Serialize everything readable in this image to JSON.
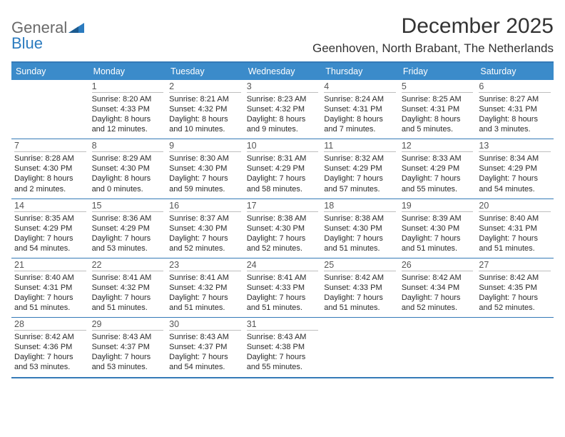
{
  "logo": {
    "word1": "General",
    "word2": "Blue"
  },
  "title": "December 2025",
  "location": "Geenhoven, North Brabant, The Netherlands",
  "colors": {
    "header_bg": "#3b8bca",
    "border": "#357ab7",
    "text": "#2a2a2a",
    "daynum": "#555555"
  },
  "dayNames": [
    "Sunday",
    "Monday",
    "Tuesday",
    "Wednesday",
    "Thursday",
    "Friday",
    "Saturday"
  ],
  "weeks": [
    [
      {
        "n": "",
        "sr": "",
        "ss": "",
        "dl": ""
      },
      {
        "n": "1",
        "sr": "8:20 AM",
        "ss": "4:33 PM",
        "dl": "8 hours and 12 minutes."
      },
      {
        "n": "2",
        "sr": "8:21 AM",
        "ss": "4:32 PM",
        "dl": "8 hours and 10 minutes."
      },
      {
        "n": "3",
        "sr": "8:23 AM",
        "ss": "4:32 PM",
        "dl": "8 hours and 9 minutes."
      },
      {
        "n": "4",
        "sr": "8:24 AM",
        "ss": "4:31 PM",
        "dl": "8 hours and 7 minutes."
      },
      {
        "n": "5",
        "sr": "8:25 AM",
        "ss": "4:31 PM",
        "dl": "8 hours and 5 minutes."
      },
      {
        "n": "6",
        "sr": "8:27 AM",
        "ss": "4:31 PM",
        "dl": "8 hours and 3 minutes."
      }
    ],
    [
      {
        "n": "7",
        "sr": "8:28 AM",
        "ss": "4:30 PM",
        "dl": "8 hours and 2 minutes."
      },
      {
        "n": "8",
        "sr": "8:29 AM",
        "ss": "4:30 PM",
        "dl": "8 hours and 0 minutes."
      },
      {
        "n": "9",
        "sr": "8:30 AM",
        "ss": "4:30 PM",
        "dl": "7 hours and 59 minutes."
      },
      {
        "n": "10",
        "sr": "8:31 AM",
        "ss": "4:29 PM",
        "dl": "7 hours and 58 minutes."
      },
      {
        "n": "11",
        "sr": "8:32 AM",
        "ss": "4:29 PM",
        "dl": "7 hours and 57 minutes."
      },
      {
        "n": "12",
        "sr": "8:33 AM",
        "ss": "4:29 PM",
        "dl": "7 hours and 55 minutes."
      },
      {
        "n": "13",
        "sr": "8:34 AM",
        "ss": "4:29 PM",
        "dl": "7 hours and 54 minutes."
      }
    ],
    [
      {
        "n": "14",
        "sr": "8:35 AM",
        "ss": "4:29 PM",
        "dl": "7 hours and 54 minutes."
      },
      {
        "n": "15",
        "sr": "8:36 AM",
        "ss": "4:29 PM",
        "dl": "7 hours and 53 minutes."
      },
      {
        "n": "16",
        "sr": "8:37 AM",
        "ss": "4:30 PM",
        "dl": "7 hours and 52 minutes."
      },
      {
        "n": "17",
        "sr": "8:38 AM",
        "ss": "4:30 PM",
        "dl": "7 hours and 52 minutes."
      },
      {
        "n": "18",
        "sr": "8:38 AM",
        "ss": "4:30 PM",
        "dl": "7 hours and 51 minutes."
      },
      {
        "n": "19",
        "sr": "8:39 AM",
        "ss": "4:30 PM",
        "dl": "7 hours and 51 minutes."
      },
      {
        "n": "20",
        "sr": "8:40 AM",
        "ss": "4:31 PM",
        "dl": "7 hours and 51 minutes."
      }
    ],
    [
      {
        "n": "21",
        "sr": "8:40 AM",
        "ss": "4:31 PM",
        "dl": "7 hours and 51 minutes."
      },
      {
        "n": "22",
        "sr": "8:41 AM",
        "ss": "4:32 PM",
        "dl": "7 hours and 51 minutes."
      },
      {
        "n": "23",
        "sr": "8:41 AM",
        "ss": "4:32 PM",
        "dl": "7 hours and 51 minutes."
      },
      {
        "n": "24",
        "sr": "8:41 AM",
        "ss": "4:33 PM",
        "dl": "7 hours and 51 minutes."
      },
      {
        "n": "25",
        "sr": "8:42 AM",
        "ss": "4:33 PM",
        "dl": "7 hours and 51 minutes."
      },
      {
        "n": "26",
        "sr": "8:42 AM",
        "ss": "4:34 PM",
        "dl": "7 hours and 52 minutes."
      },
      {
        "n": "27",
        "sr": "8:42 AM",
        "ss": "4:35 PM",
        "dl": "7 hours and 52 minutes."
      }
    ],
    [
      {
        "n": "28",
        "sr": "8:42 AM",
        "ss": "4:36 PM",
        "dl": "7 hours and 53 minutes."
      },
      {
        "n": "29",
        "sr": "8:43 AM",
        "ss": "4:37 PM",
        "dl": "7 hours and 53 minutes."
      },
      {
        "n": "30",
        "sr": "8:43 AM",
        "ss": "4:37 PM",
        "dl": "7 hours and 54 minutes."
      },
      {
        "n": "31",
        "sr": "8:43 AM",
        "ss": "4:38 PM",
        "dl": "7 hours and 55 minutes."
      },
      {
        "n": "",
        "sr": "",
        "ss": "",
        "dl": ""
      },
      {
        "n": "",
        "sr": "",
        "ss": "",
        "dl": ""
      },
      {
        "n": "",
        "sr": "",
        "ss": "",
        "dl": ""
      }
    ]
  ],
  "labels": {
    "sunrise": "Sunrise:",
    "sunset": "Sunset:",
    "daylight": "Daylight:"
  }
}
